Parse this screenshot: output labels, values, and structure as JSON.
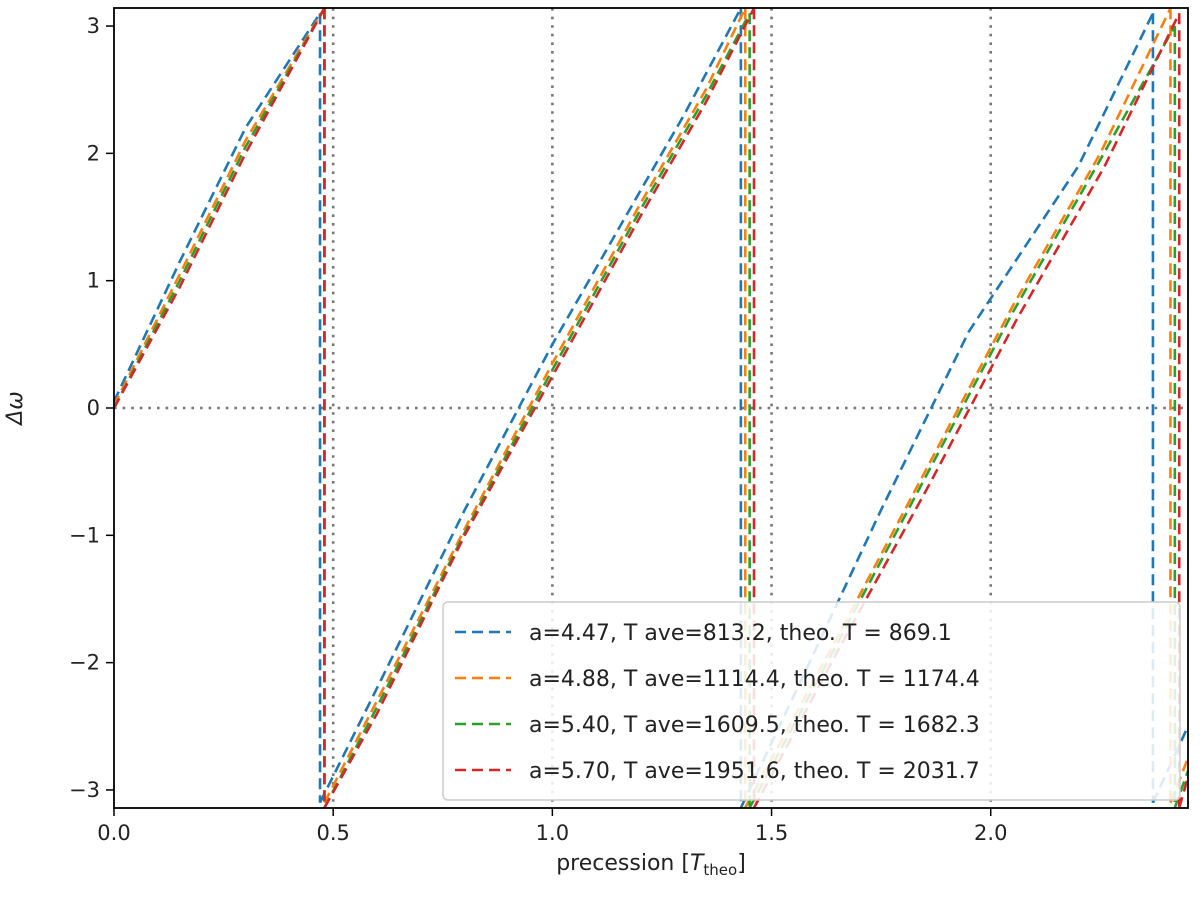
{
  "chart_data": {
    "type": "line",
    "title": "",
    "xlabel": "precession [",
    "xlabel_math": "T",
    "xlabel_sub": "theo",
    "xlabel_close": "]",
    "ylabel": "Δω",
    "xlim": [
      0.0,
      2.45
    ],
    "ylim": [
      -3.1416,
      3.1416
    ],
    "x_ticks": [
      0.0,
      0.5,
      1.0,
      1.5,
      2.0
    ],
    "x_tick_labels": [
      "0.0",
      "0.5",
      "1.0",
      "1.5",
      "2.0"
    ],
    "y_ticks": [
      -3,
      -2,
      -1,
      0,
      1,
      2,
      3
    ],
    "y_tick_labels": [
      "−3",
      "−2",
      "−1",
      "0",
      "1",
      "2",
      "3"
    ],
    "reference_lines": {
      "y": [
        0
      ],
      "x": [
        0.5,
        1.0,
        1.5,
        2.0
      ],
      "style": "dotted",
      "color": "#777777"
    },
    "legend_position": "lower-right",
    "series": [
      {
        "name": "a=4.47, T ave=813.2, theo. T = 869.1",
        "color": "#1f77b4",
        "segments": [
          [
            [
              0.0,
              0.05
            ],
            [
              0.15,
              1.15
            ],
            [
              0.3,
              2.2
            ],
            [
              0.47,
              3.1
            ]
          ],
          [
            [
              0.47,
              -3.1
            ],
            [
              0.6,
              -2.2
            ],
            [
              0.8,
              -0.8
            ],
            [
              1.0,
              0.5
            ],
            [
              1.2,
              1.7
            ],
            [
              1.3,
              2.3
            ],
            [
              1.43,
              3.14
            ]
          ],
          [
            [
              1.43,
              -3.14
            ],
            [
              1.6,
              -1.9
            ],
            [
              1.75,
              -0.8
            ],
            [
              1.95,
              0.6
            ],
            [
              2.2,
              1.9
            ],
            [
              2.37,
              3.1
            ]
          ],
          [
            [
              2.37,
              -3.1
            ],
            [
              2.45,
              -2.5
            ]
          ]
        ]
      },
      {
        "name": "a=4.88, T ave=1114.4, theo. T = 1174.4",
        "color": "#ff7f0e",
        "segments": [
          [
            [
              0.0,
              0.02
            ],
            [
              0.15,
              1.05
            ],
            [
              0.3,
              2.1
            ],
            [
              0.48,
              3.14
            ]
          ],
          [
            [
              0.48,
              -3.1
            ],
            [
              0.6,
              -2.3
            ],
            [
              0.8,
              -0.95
            ],
            [
              1.0,
              0.35
            ],
            [
              1.2,
              1.6
            ],
            [
              1.35,
              2.5
            ],
            [
              1.44,
              3.14
            ]
          ],
          [
            [
              1.44,
              -3.14
            ],
            [
              1.65,
              -1.8
            ],
            [
              1.85,
              -0.5
            ],
            [
              2.05,
              0.8
            ],
            [
              2.25,
              2.0
            ],
            [
              2.41,
              3.14
            ]
          ],
          [
            [
              2.41,
              -3.1
            ],
            [
              2.45,
              -2.75
            ]
          ]
        ]
      },
      {
        "name": "a=5.40, T ave=1609.5, theo. T = 1682.3",
        "color": "#2ca02c",
        "segments": [
          [
            [
              0.0,
              0.0
            ],
            [
              0.15,
              1.0
            ],
            [
              0.3,
              2.05
            ],
            [
              0.48,
              3.14
            ]
          ],
          [
            [
              0.48,
              -3.14
            ],
            [
              0.6,
              -2.35
            ],
            [
              0.8,
              -0.98
            ],
            [
              1.0,
              0.3
            ],
            [
              1.2,
              1.55
            ],
            [
              1.35,
              2.45
            ],
            [
              1.45,
              3.1
            ]
          ],
          [
            [
              1.45,
              -3.14
            ],
            [
              1.65,
              -1.85
            ],
            [
              1.85,
              -0.55
            ],
            [
              2.05,
              0.75
            ],
            [
              2.25,
              1.95
            ],
            [
              2.42,
              3.0
            ]
          ],
          [
            [
              2.42,
              -3.14
            ],
            [
              2.45,
              -2.85
            ]
          ]
        ]
      },
      {
        "name": "a=5.70, T ave=1951.6, theo. T = 2031.7",
        "color": "#d62728",
        "segments": [
          [
            [
              0.0,
              0.0
            ],
            [
              0.15,
              0.95
            ],
            [
              0.3,
              2.0
            ],
            [
              0.48,
              3.14
            ]
          ],
          [
            [
              0.48,
              -3.14
            ],
            [
              0.6,
              -2.4
            ],
            [
              0.8,
              -1.0
            ],
            [
              1.0,
              0.25
            ],
            [
              1.2,
              1.5
            ],
            [
              1.35,
              2.4
            ],
            [
              1.46,
              3.14
            ]
          ],
          [
            [
              1.46,
              -3.14
            ],
            [
              1.66,
              -1.85
            ],
            [
              1.86,
              -0.6
            ],
            [
              2.06,
              0.7
            ],
            [
              2.26,
              1.9
            ],
            [
              2.43,
              3.1
            ]
          ],
          [
            [
              2.43,
              -3.14
            ],
            [
              2.45,
              -2.9
            ]
          ]
        ]
      }
    ]
  }
}
